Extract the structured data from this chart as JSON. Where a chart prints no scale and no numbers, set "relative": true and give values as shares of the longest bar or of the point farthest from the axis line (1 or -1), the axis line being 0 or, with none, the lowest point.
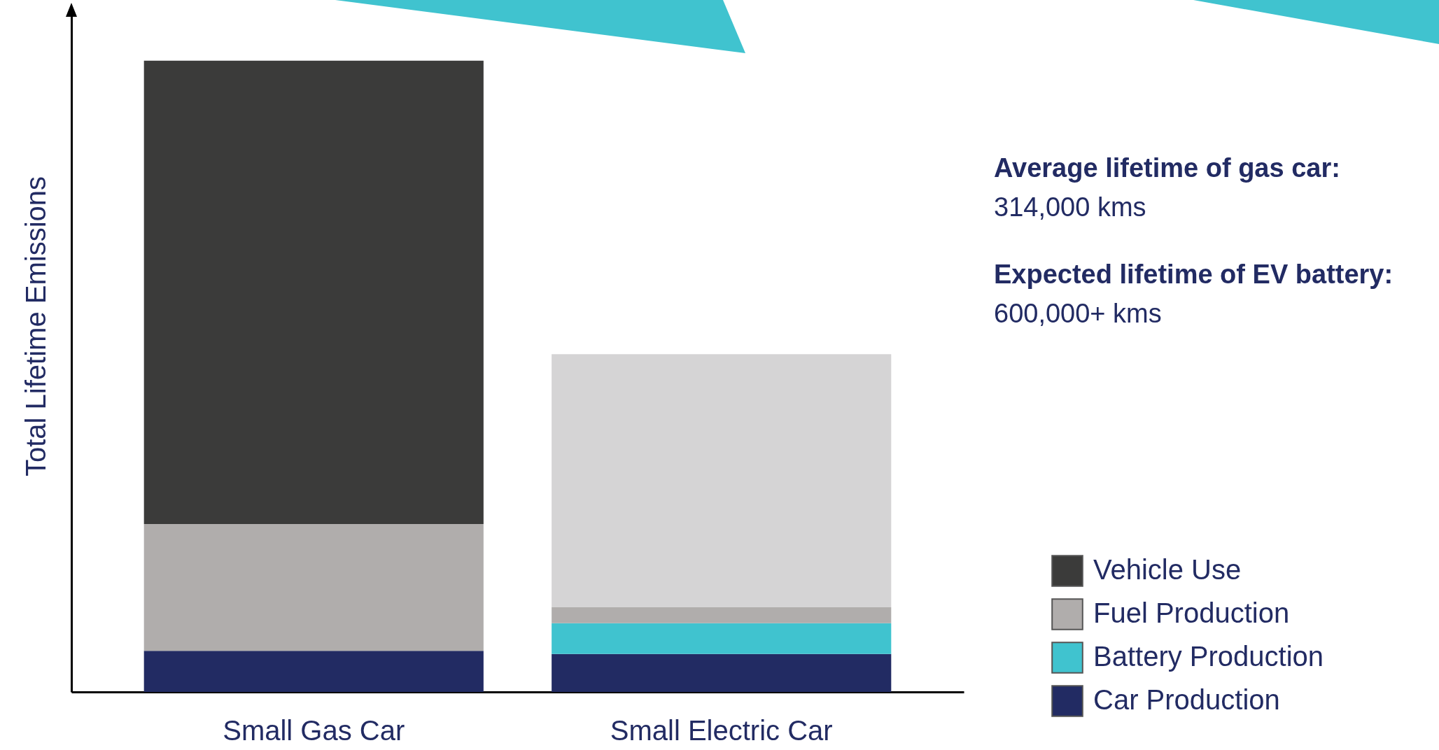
{
  "chart_data": {
    "type": "bar",
    "stacked": true,
    "relative": true,
    "ylabel": "Total Lifetime Emissions",
    "categories": [
      "Small Gas Car",
      "Small Electric Car"
    ],
    "series": [
      {
        "name": "Car Production",
        "color": "#222b63",
        "values": [
          0.065,
          0.06
        ]
      },
      {
        "name": "Battery Production",
        "color": "#40c3cf",
        "values": [
          0,
          0.049
        ]
      },
      {
        "name": "Fuel Production",
        "color": "#b0adac",
        "values": [
          0.201,
          0.025
        ]
      },
      {
        "name": "Vehicle Use",
        "color": "#3b3b3a",
        "colors": [
          "#3b3b3a",
          "#d5d4d5"
        ],
        "values": [
          0.734,
          0.401
        ]
      }
    ],
    "legend": "bottom right",
    "grid": false,
    "annotations": [
      "Average lifetime of gas car:",
      "314,000 kms",
      "Expected lifetime of EV battery:",
      "600,000+ kms"
    ]
  }
}
